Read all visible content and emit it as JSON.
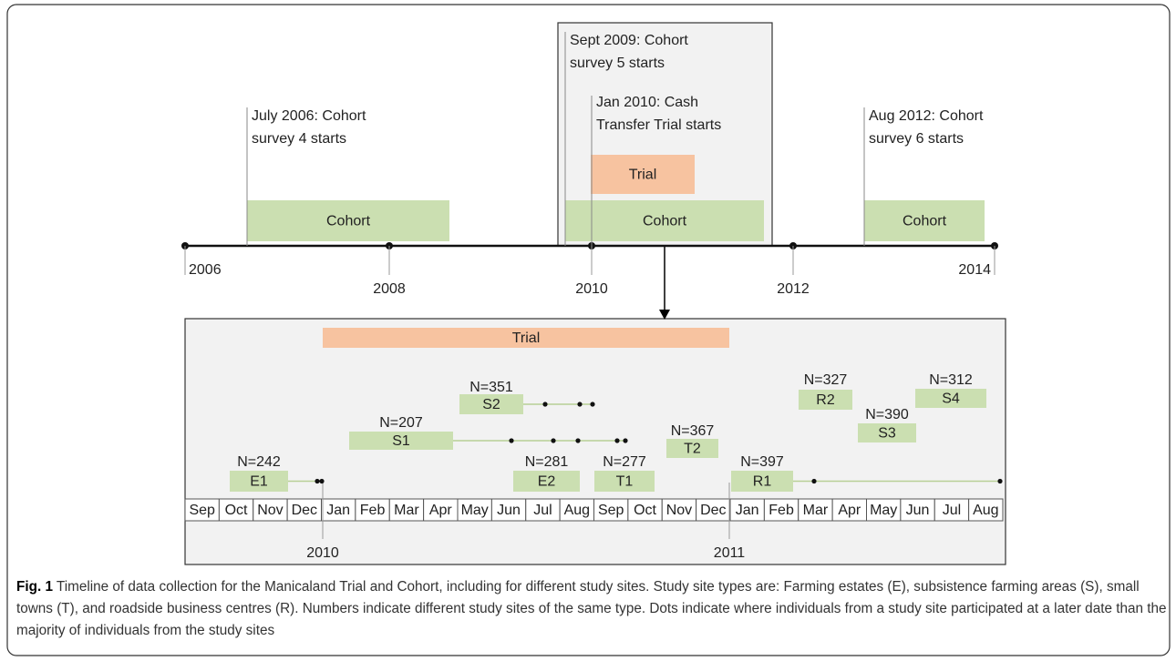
{
  "timeline": {
    "years": [
      "2006",
      "2008",
      "2010",
      "2012",
      "2014"
    ],
    "events": [
      {
        "lines": [
          "July 2006:  Cohort",
          "survey 4 starts"
        ]
      },
      {
        "lines": [
          "Sept 2009:  Cohort",
          "survey 5 starts"
        ]
      },
      {
        "lines": [
          "Jan 2010:  Cash",
          "Transfer Trial starts"
        ]
      },
      {
        "lines": [
          "Aug 2012:  Cohort",
          "survey 6 starts"
        ]
      }
    ],
    "bars": [
      "Cohort",
      "Cohort",
      "Cohort",
      "Trial"
    ]
  },
  "detail": {
    "trial": "Trial",
    "months": [
      "Sep",
      "Oct",
      "Nov",
      "Dec",
      "Jan",
      "Feb",
      "Mar",
      "Apr",
      "May",
      "Jun",
      "Jul",
      "Aug",
      "Sep",
      "Oct",
      "Nov",
      "Dec",
      "Jan",
      "Feb",
      "Mar",
      "Apr",
      "May",
      "Jun",
      "Jul",
      "Aug"
    ],
    "years": [
      "2010",
      "2011"
    ],
    "sites": [
      {
        "name": "E1",
        "n": "N=242"
      },
      {
        "name": "S1",
        "n": "N=207"
      },
      {
        "name": "S2",
        "n": "N=351"
      },
      {
        "name": "E2",
        "n": "N=281"
      },
      {
        "name": "T1",
        "n": "N=277"
      },
      {
        "name": "T2",
        "n": "N=367"
      },
      {
        "name": "R1",
        "n": "N=397"
      },
      {
        "name": "R2",
        "n": "N=327"
      },
      {
        "name": "S3",
        "n": "N=390"
      },
      {
        "name": "S4",
        "n": "N=312"
      }
    ]
  },
  "caption": {
    "label": "Fig. 1",
    "text": " Timeline of data collection for the Manicaland Trial and Cohort, including for different study sites. Study site types are: Farming estates (E), subsistence farming areas (S), small towns (T), and roadside business centres (R). Numbers indicate different study sites of the same type. Dots indicate where individuals from a study site participated at a later date than the majority of individuals from the study sites"
  }
}
